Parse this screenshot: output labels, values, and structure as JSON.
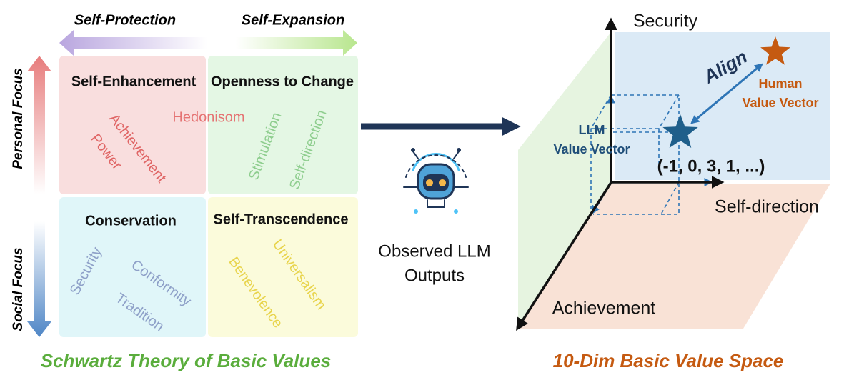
{
  "schwartz": {
    "top_arrows": [
      "Self-Protection",
      "Self-Expansion"
    ],
    "side_arrows": [
      "Personal Focus",
      "Social Focus"
    ],
    "quadrants": [
      {
        "title": "Self-Enhancement",
        "values": [
          "Achievement",
          "Power"
        ]
      },
      {
        "title": "Openness to Change",
        "values": [
          "Stimulation",
          "Self-direction"
        ]
      },
      {
        "title": "Conservation",
        "values": [
          "Security",
          "Conformity",
          "Tradition"
        ]
      },
      {
        "title": "Self-Transcendence",
        "values": [
          "Universalism",
          "Benevolence"
        ]
      }
    ],
    "shared_value": "Hedonisom",
    "caption": "Schwartz Theory of Basic Values"
  },
  "middle": {
    "label_lines": [
      "Observed LLM",
      "Outputs"
    ]
  },
  "value_space": {
    "axes": [
      "Security",
      "Self-direction",
      "Achievement"
    ],
    "align": "Align",
    "human_vector": [
      "Human",
      "Value Vector"
    ],
    "llm_vector": [
      "LLM",
      "Value Vector"
    ],
    "llm_coordinates": "(-1, 0, 3, 1, ...)",
    "caption": "10-Dim Basic Value Space"
  }
}
